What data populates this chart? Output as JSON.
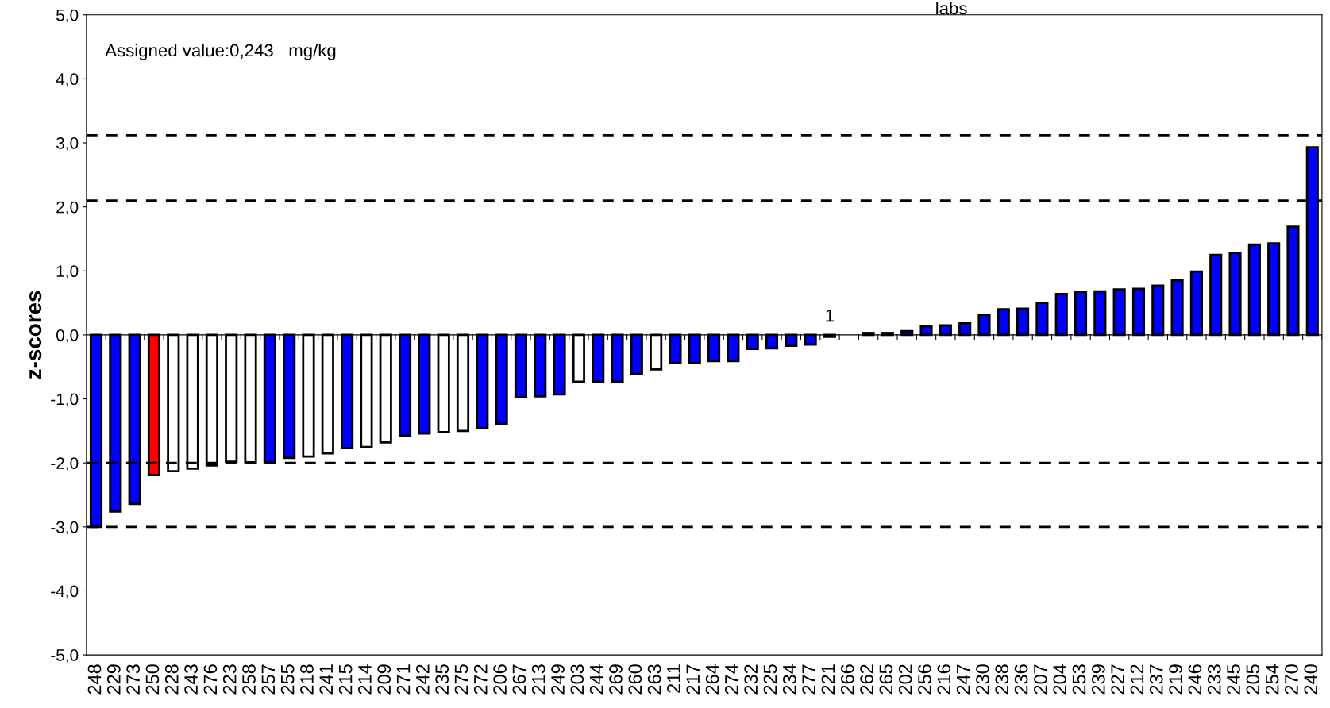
{
  "chart_data": {
    "type": "bar",
    "ylabel": "z-scores",
    "categories": [
      "248",
      "229",
      "273",
      "250",
      "228",
      "243",
      "276",
      "223",
      "258",
      "257",
      "255",
      "218",
      "241",
      "215",
      "214",
      "209",
      "271",
      "242",
      "235",
      "275",
      "272",
      "206",
      "267",
      "213",
      "249",
      "203",
      "244",
      "269",
      "260",
      "263",
      "211",
      "217",
      "264",
      "274",
      "232",
      "225",
      "234",
      "277",
      "221",
      "266",
      "262",
      "265",
      "202",
      "256",
      "216",
      "247",
      "230",
      "238",
      "236",
      "207",
      "204",
      "253",
      "239",
      "227",
      "212",
      "237",
      "219",
      "246",
      "233",
      "245",
      "205",
      "254",
      "270",
      "240"
    ],
    "values": [
      -3.0,
      -2.76,
      -2.64,
      -2.19,
      -2.13,
      -2.09,
      -2.04,
      -1.98,
      -1.99,
      -1.99,
      -1.92,
      -1.9,
      -1.85,
      -1.77,
      -1.75,
      -1.68,
      -1.57,
      -1.54,
      -1.52,
      -1.5,
      -1.46,
      -1.39,
      -0.97,
      -0.96,
      -0.93,
      -0.73,
      -0.73,
      -0.73,
      -0.61,
      -0.54,
      -0.44,
      -0.44,
      -0.41,
      -0.41,
      -0.22,
      -0.21,
      -0.17,
      -0.15,
      -0.03,
      null,
      0.03,
      0.03,
      0.06,
      0.13,
      0.15,
      0.18,
      0.31,
      0.4,
      0.41,
      0.5,
      0.64,
      0.67,
      0.68,
      0.71,
      0.72,
      0.77,
      0.85,
      0.99,
      1.25,
      1.28,
      1.41,
      1.43,
      1.69,
      2.93
    ],
    "colors": [
      "#0000ff",
      "#0000ff",
      "#0000ff",
      "#ff0000",
      "#ffffff",
      "#ffffff",
      "#ffffff",
      "#ffffff",
      "#ffffff",
      "#0000ff",
      "#0000ff",
      "#ffffff",
      "#ffffff",
      "#0000ff",
      "#ffffff",
      "#ffffff",
      "#0000ff",
      "#0000ff",
      "#ffffff",
      "#ffffff",
      "#0000ff",
      "#0000ff",
      "#0000ff",
      "#0000ff",
      "#0000ff",
      "#ffffff",
      "#0000ff",
      "#0000ff",
      "#0000ff",
      "#ffffff",
      "#0000ff",
      "#0000ff",
      "#0000ff",
      "#0000ff",
      "#0000ff",
      "#0000ff",
      "#0000ff",
      "#0000ff",
      "#0000ff",
      "#0000ff",
      "#0000ff",
      "#0000ff",
      "#0000ff",
      "#0000ff",
      "#0000ff",
      "#0000ff",
      "#0000ff",
      "#0000ff",
      "#0000ff",
      "#0000ff",
      "#0000ff",
      "#0000ff",
      "#0000ff",
      "#0000ff",
      "#0000ff",
      "#0000ff",
      "#0000ff",
      "#0000ff",
      "#0000ff",
      "#0000ff",
      "#0000ff",
      "#0000ff",
      "#0000ff",
      "#0000ff"
    ],
    "ylim": [
      -5,
      5
    ],
    "yticks": [
      {
        "value": -5,
        "label": "-5,0"
      },
      {
        "value": -4,
        "label": "-4,0"
      },
      {
        "value": -3,
        "label": "-3,0"
      },
      {
        "value": -2,
        "label": "-2,0"
      },
      {
        "value": -1,
        "label": "-1,0"
      },
      {
        "value": 0,
        "label": "0,0"
      },
      {
        "value": 1,
        "label": "1,0"
      },
      {
        "value": 2,
        "label": "2,0"
      },
      {
        "value": 3,
        "label": "3,0"
      },
      {
        "value": 4,
        "label": "4,0"
      },
      {
        "value": 5,
        "label": "5,0"
      }
    ],
    "ref_lines": [
      {
        "axis": "y",
        "value": 3.12,
        "color": "#000000",
        "line_style": "dashed"
      },
      {
        "axis": "y",
        "value": 2.1,
        "color": "#000000",
        "line_style": "dashed"
      },
      {
        "axis": "y",
        "value": -2.0,
        "color": "#000000",
        "line_style": "dashed"
      },
      {
        "axis": "y",
        "value": -3.0,
        "color": "#000000",
        "line_style": "dashed"
      }
    ],
    "annotations": [
      "Assigned value:0,243   mg/kg",
      "labs",
      "1"
    ],
    "grid": false,
    "legend": false
  }
}
